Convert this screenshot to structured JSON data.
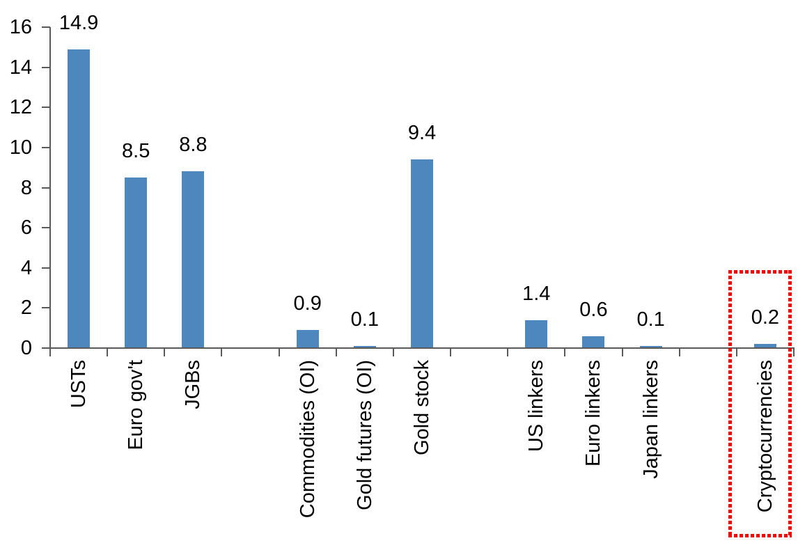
{
  "chart_data": {
    "type": "bar",
    "title": "",
    "xlabel": "",
    "ylabel": "",
    "categories": [
      "USTs",
      "Euro gov't",
      "JGBs",
      "Commodities (OI)",
      "Gold futures (OI)",
      "Gold stock",
      "US linkers",
      "Euro linkers",
      "Japan linkers",
      "Cryptocurrencies"
    ],
    "values": [
      14.9,
      8.5,
      8.8,
      0.9,
      0.1,
      9.4,
      1.4,
      0.6,
      0.1,
      0.2
    ],
    "data_labels": [
      "14.9",
      "8.5",
      "8.8",
      "0.9",
      "0.1",
      "9.4",
      "1.4",
      "0.6",
      "0.1",
      "0.2"
    ],
    "slot_index": [
      0,
      1,
      2,
      4,
      5,
      6,
      8,
      9,
      10,
      12
    ],
    "total_slots": 13,
    "ylim": [
      0,
      16
    ],
    "yticks": [
      0,
      2,
      4,
      6,
      8,
      10,
      12,
      14,
      16
    ],
    "grid": false,
    "legend": null,
    "bar_color": "#4E86BE",
    "axis_color": "#595959",
    "text_color": "#000000",
    "highlight": {
      "category": "Cryptocurrencies",
      "value": 0.2,
      "shape": "red-dotted-rectangle",
      "color": "#FF0000"
    }
  }
}
